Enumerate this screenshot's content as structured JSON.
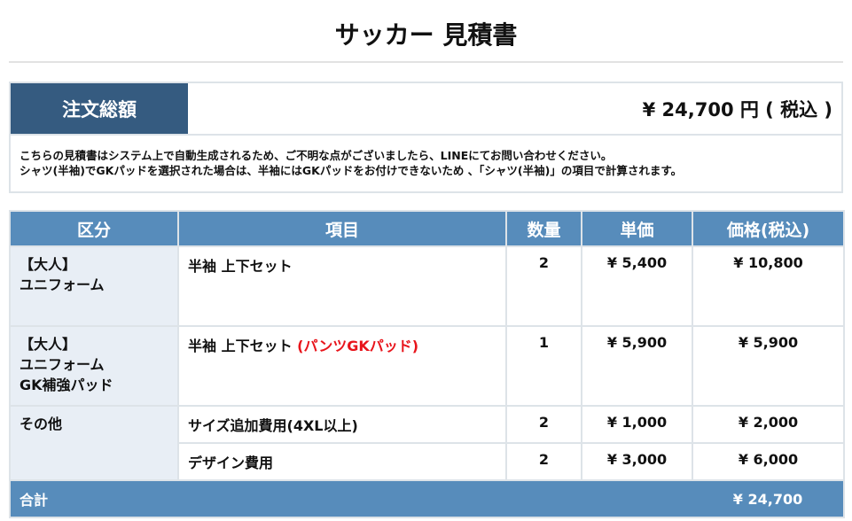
{
  "title": "サッカー 見積書",
  "summary": {
    "label": "注文総額",
    "value": "¥ 24,700 円 ( 税込 )",
    "notes": [
      "こちらの見積書はシステム上で自動生成されるため、ご不明な点がございましたら、LINEにてお問い合わせください。",
      "シャツ(半袖)でGKパッドを選択された場合は、半袖にはGKパッドをお付けできないため 、「シャツ(半袖)」の項目で計算されます。"
    ]
  },
  "table": {
    "headers": [
      "区分",
      "項目",
      "数量",
      "単価",
      "価格(税込)"
    ],
    "rows": [
      {
        "category": [
          "【大人】",
          "ユニフォーム"
        ],
        "item": "半袖 上下セット",
        "item_note": "",
        "qty": "2",
        "unit": "¥ 5,400",
        "price": "¥ 10,800"
      },
      {
        "category": [
          "【大人】",
          "ユニフォーム",
          "GK補強パッド"
        ],
        "item": "半袖 上下セット",
        "item_note": "(パンツGKパッド)",
        "qty": "1",
        "unit": "¥ 5,900",
        "price": "¥ 5,900"
      },
      {
        "category": [
          "その他"
        ],
        "item": "サイズ追加費用(4XL以上)",
        "item_note": "",
        "qty": "2",
        "unit": "¥ 1,000",
        "price": "¥ 2,000"
      },
      {
        "category": [],
        "item": "デザイン費用",
        "item_note": "",
        "qty": "2",
        "unit": "¥ 3,000",
        "price": "¥ 6,000"
      }
    ],
    "total": {
      "label": "合計",
      "value": "¥ 24,700"
    }
  },
  "colors": {
    "summary_label": "#355b80",
    "header": "#578cbb",
    "note_red": "#e8141b"
  }
}
